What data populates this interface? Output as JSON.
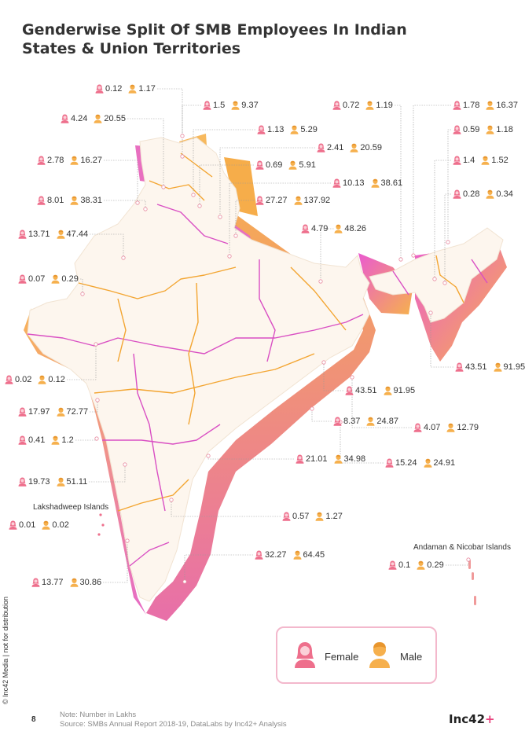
{
  "title": "Genderwise Split Of SMB Employees In Indian States & Union Territories",
  "colors": {
    "female": "#ee6f8c",
    "male": "#f6b04d",
    "border_pink": "#d94fc3",
    "border_orange": "#f3a531",
    "land": "#fdf6ee"
  },
  "labels": [
    {
      "female": "0.12",
      "male": "1.17"
    },
    {
      "female": "4.24",
      "male": "20.55"
    },
    {
      "female": "1.5",
      "male": "9.37"
    },
    {
      "female": "1.13",
      "male": "5.29"
    },
    {
      "female": "0.72",
      "male": "1.19"
    },
    {
      "female": "1.78",
      "male": "16.37"
    },
    {
      "female": "2.41",
      "male": "20.59"
    },
    {
      "female": "0.59",
      "male": "1.18"
    },
    {
      "female": "2.78",
      "male": "16.27"
    },
    {
      "female": "0.69",
      "male": "5.91"
    },
    {
      "female": "1.4",
      "male": "1.52"
    },
    {
      "female": "10.13",
      "male": "38.61"
    },
    {
      "female": "8.01",
      "male": "38.31"
    },
    {
      "female": "27.27",
      "male": "137.92"
    },
    {
      "female": "0.28",
      "male": "0.34"
    },
    {
      "female": "4.79",
      "male": "48.26"
    },
    {
      "female": "13.71",
      "male": "47.44"
    },
    {
      "female": "0.07",
      "male": "0.29"
    },
    {
      "female": "43.51",
      "male": "91.95"
    },
    {
      "female": "0.02",
      "male": "0.12"
    },
    {
      "female": "43.51",
      "male": "91.95"
    },
    {
      "female": "17.97",
      "male": "72.77"
    },
    {
      "female": "8.37",
      "male": "24.87"
    },
    {
      "female": "4.07",
      "male": "12.79"
    },
    {
      "female": "0.41",
      "male": "1.2"
    },
    {
      "female": "21.01",
      "male": "34.98"
    },
    {
      "female": "15.24",
      "male": "24.91"
    },
    {
      "female": "19.73",
      "male": "51.11"
    },
    {
      "female": "0.57",
      "male": "1.27"
    },
    {
      "female": "0.01",
      "male": "0.02"
    },
    {
      "female": "32.27",
      "male": "64.45"
    },
    {
      "female": "0.1",
      "male": "0.29"
    },
    {
      "female": "13.77",
      "male": "30.86"
    }
  ],
  "regions": {
    "lakshadweep": "Lakshadweep Islands",
    "andaman": "Andaman & Nicobar Islands"
  },
  "legend": {
    "female": "Female",
    "male": "Male"
  },
  "side_text": "© Inc42 Media | not for distribution",
  "page_number": "8",
  "note": {
    "line1": "Note: Number in Lakhs",
    "line2": "Source: SMBs Annual Report 2018-19, DataLabs by Inc42+ Analysis"
  },
  "logo": {
    "text": "Inc42",
    "plus": "+"
  }
}
